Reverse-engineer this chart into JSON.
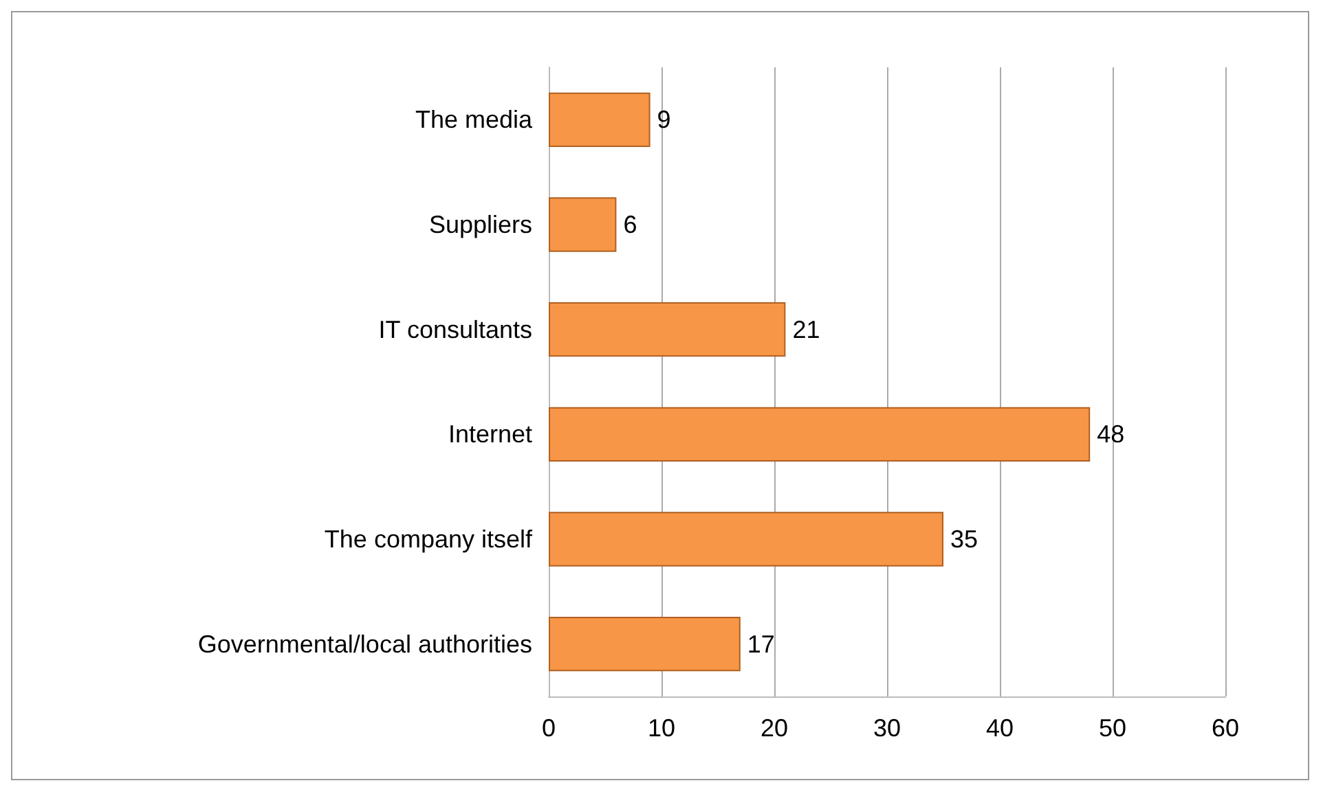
{
  "chart_data": {
    "type": "bar",
    "orientation": "horizontal",
    "categories": [
      "The media",
      "Suppliers",
      "IT consultants",
      "Internet",
      "The company itself",
      "Governmental/local authorities"
    ],
    "values": [
      9,
      6,
      21,
      48,
      35,
      17
    ],
    "color": "#f79646",
    "xlim": [
      0,
      60
    ],
    "xticks": [
      0,
      10,
      20,
      30,
      40,
      50,
      60
    ],
    "grid": "x",
    "data_labels": true
  }
}
